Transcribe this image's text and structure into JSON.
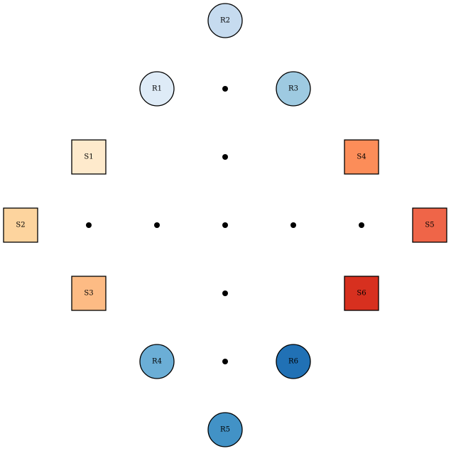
{
  "nodes": [
    {
      "id": "r2",
      "label": "R2",
      "shape": "circle",
      "fill": "#c6dbef"
    },
    {
      "id": "r1",
      "label": "R1",
      "shape": "circle",
      "fill": "#deebf7"
    },
    {
      "id": "r3",
      "label": "R3",
      "shape": "circle",
      "fill": "#9ecae1"
    },
    {
      "id": "s1",
      "label": "S1",
      "shape": "square",
      "fill": "#feeacc"
    },
    {
      "id": "s4",
      "label": "S4",
      "shape": "square",
      "fill": "#fc8d59"
    },
    {
      "id": "s2",
      "label": "S2",
      "shape": "square",
      "fill": "#fdd49e"
    },
    {
      "id": "s5",
      "label": "S5",
      "shape": "square",
      "fill": "#ef6548"
    },
    {
      "id": "s3",
      "label": "S3",
      "shape": "square",
      "fill": "#fdbb84"
    },
    {
      "id": "s6",
      "label": "S6",
      "shape": "square",
      "fill": "#d7301f"
    },
    {
      "id": "r4",
      "label": "R4",
      "shape": "circle",
      "fill": "#6baed6"
    },
    {
      "id": "r6",
      "label": "R6",
      "shape": "circle",
      "fill": "#2171b5"
    },
    {
      "id": "r5",
      "label": "R5",
      "shape": "circle",
      "fill": "#4292c6"
    }
  ],
  "junction_count": 9
}
